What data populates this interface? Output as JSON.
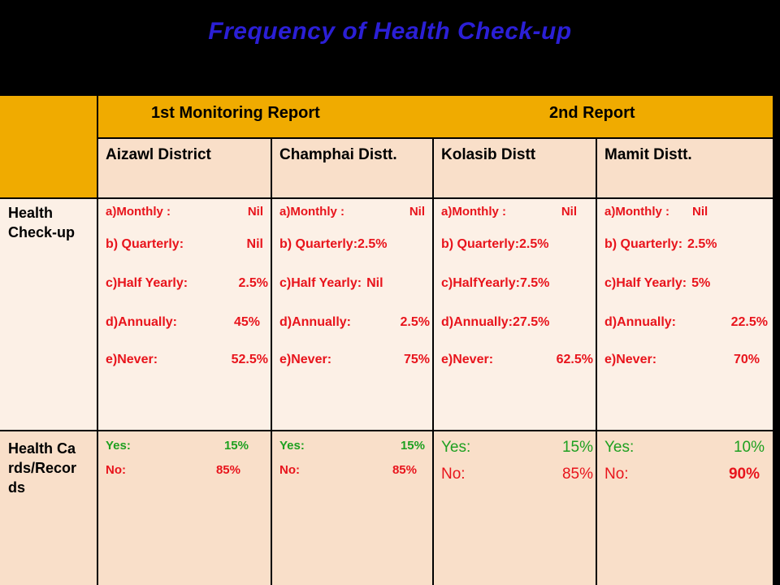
{
  "title": "Frequency of Health Check-up",
  "header": {
    "report1": "1st Monitoring  Report",
    "report2": "2nd Report"
  },
  "columns": [
    "Aizawl District",
    "Champhai Distt.",
    "Kolasib Distt",
    "Mamit Distt."
  ],
  "rows": [
    {
      "label": "Health Check-up",
      "cells": [
        [
          [
            "a)Monthly :",
            "Nil"
          ],
          [
            "b) Quarterly:",
            "Nil"
          ],
          [
            "c)Half Yearly:",
            "2.5%"
          ],
          [
            "d)Annually:",
            "45%"
          ],
          [
            "e)Never:",
            "52.5%"
          ]
        ],
        [
          [
            "a)Monthly :",
            "Nil"
          ],
          [
            "b) Quarterly:",
            "2.5%"
          ],
          [
            "c)Half Yearly:",
            "Nil"
          ],
          [
            "d)Annually:",
            "2.5%"
          ],
          [
            "e)Never:",
            "75%"
          ]
        ],
        [
          [
            "a)Monthly :",
            "Nil"
          ],
          [
            "b) Quarterly:",
            "2.5%"
          ],
          [
            "c)HalfYearly:",
            "7.5%"
          ],
          [
            "d)Annually:",
            "27.5%"
          ],
          [
            "e)Never:",
            "62.5%"
          ]
        ],
        [
          [
            "a)Monthly :",
            "Nil"
          ],
          [
            "b) Quarterly:",
            "2.5%"
          ],
          [
            "c)Half Yearly:",
            "5%"
          ],
          [
            "d)Annually:",
            "22.5%"
          ],
          [
            "e)Never:",
            "70%"
          ]
        ]
      ]
    },
    {
      "label": "Health Cards/Records",
      "cells": [
        [
          [
            "Yes:",
            "15%"
          ],
          [
            "No:",
            "85%"
          ]
        ],
        [
          [
            "Yes:",
            "15%"
          ],
          [
            "No:",
            "85%"
          ]
        ],
        [
          [
            "Yes:",
            "15%"
          ],
          [
            "No:",
            "85%"
          ]
        ],
        [
          [
            "Yes:",
            "10%"
          ],
          [
            "No:",
            "90%"
          ]
        ]
      ]
    }
  ],
  "colors": {
    "title": "#2b1fd6",
    "header_band": "#f0ab00",
    "peach": "#f9dfc9",
    "cream": "#fcf0e6",
    "health_checkup_text": "#e8141c",
    "health_cards_text": "#1ea020"
  }
}
